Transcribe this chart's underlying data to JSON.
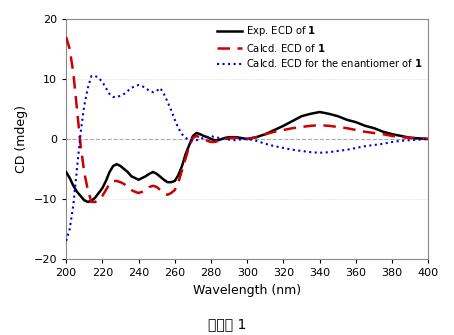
{
  "title": "化合物 1",
  "xlabel": "Wavelength (nm)",
  "ylabel": "CD (mdeg)",
  "xlim": [
    200,
    400
  ],
  "ylim": [
    -20,
    20
  ],
  "xticks": [
    200,
    220,
    240,
    260,
    280,
    300,
    320,
    340,
    360,
    380,
    400
  ],
  "yticks": [
    -20,
    -10,
    0,
    10,
    20
  ],
  "legend": [
    {
      "label": "Exp. ECD of 1",
      "color": "#000000",
      "linestyle": "solid",
      "linewidth": 1.8
    },
    {
      "label": "Calcd. ECD of 1",
      "color": "#cc0000",
      "linestyle": "dashed",
      "linewidth": 1.8
    },
    {
      "label": "Calcd. ECD for the enantiomer of 1",
      "color": "#0000cc",
      "linestyle": "dotted",
      "linewidth": 1.5
    }
  ],
  "exp_x": [
    200,
    202,
    204,
    206,
    208,
    210,
    212,
    214,
    216,
    218,
    220,
    222,
    224,
    226,
    228,
    230,
    232,
    234,
    236,
    238,
    240,
    242,
    244,
    246,
    248,
    250,
    252,
    254,
    256,
    258,
    260,
    262,
    264,
    266,
    268,
    270,
    272,
    274,
    276,
    278,
    280,
    282,
    284,
    286,
    288,
    290,
    292,
    294,
    296,
    298,
    300,
    305,
    310,
    315,
    320,
    325,
    330,
    335,
    340,
    345,
    350,
    355,
    360,
    365,
    370,
    375,
    380,
    385,
    390,
    395,
    400
  ],
  "exp_y": [
    -5.5,
    -6.5,
    -7.8,
    -8.8,
    -9.5,
    -10.2,
    -10.5,
    -10.3,
    -9.8,
    -9.0,
    -8.2,
    -7.0,
    -5.5,
    -4.5,
    -4.2,
    -4.5,
    -5.0,
    -5.5,
    -6.2,
    -6.5,
    -6.8,
    -6.5,
    -6.2,
    -5.8,
    -5.5,
    -5.8,
    -6.3,
    -6.8,
    -7.2,
    -7.2,
    -7.0,
    -6.0,
    -4.5,
    -2.5,
    -1.0,
    0.5,
    1.0,
    0.8,
    0.5,
    0.3,
    0.0,
    -0.2,
    -0.2,
    0.0,
    0.2,
    0.3,
    0.3,
    0.3,
    0.2,
    0.1,
    0.0,
    0.3,
    0.8,
    1.5,
    2.2,
    3.0,
    3.8,
    4.2,
    4.5,
    4.2,
    3.8,
    3.2,
    2.8,
    2.2,
    1.8,
    1.2,
    0.8,
    0.5,
    0.2,
    0.1,
    0.0
  ],
  "calcd_x": [
    200,
    202,
    204,
    206,
    208,
    210,
    212,
    214,
    216,
    218,
    220,
    222,
    224,
    226,
    228,
    230,
    232,
    234,
    236,
    238,
    240,
    242,
    244,
    246,
    248,
    250,
    252,
    254,
    256,
    258,
    260,
    262,
    264,
    266,
    268,
    270,
    272,
    274,
    276,
    278,
    280,
    282,
    284,
    286,
    288,
    290,
    292,
    294,
    296,
    298,
    300,
    305,
    310,
    315,
    320,
    325,
    330,
    335,
    340,
    345,
    350,
    355,
    360,
    365,
    370,
    375,
    380,
    385,
    390,
    395,
    400
  ],
  "calcd_y": [
    17.0,
    15.0,
    11.0,
    5.0,
    -1.0,
    -5.5,
    -8.5,
    -10.5,
    -10.5,
    -10.2,
    -9.5,
    -8.5,
    -7.5,
    -7.0,
    -7.0,
    -7.2,
    -7.5,
    -8.0,
    -8.5,
    -8.8,
    -9.0,
    -8.8,
    -8.5,
    -8.0,
    -7.8,
    -8.0,
    -8.5,
    -9.0,
    -9.3,
    -9.0,
    -8.5,
    -7.2,
    -5.2,
    -3.2,
    -1.2,
    0.2,
    0.5,
    0.3,
    0.0,
    -0.3,
    -0.5,
    -0.5,
    -0.3,
    -0.2,
    0.0,
    0.1,
    0.2,
    0.2,
    0.1,
    0.0,
    0.0,
    0.3,
    0.8,
    1.2,
    1.5,
    1.8,
    2.0,
    2.2,
    2.3,
    2.2,
    2.0,
    1.8,
    1.5,
    1.2,
    1.0,
    0.8,
    0.5,
    0.3,
    0.2,
    0.1,
    0.0
  ],
  "enanti_x": [
    200,
    202,
    204,
    206,
    208,
    210,
    212,
    214,
    216,
    218,
    220,
    222,
    224,
    226,
    228,
    230,
    232,
    234,
    236,
    238,
    240,
    242,
    244,
    246,
    248,
    250,
    252,
    254,
    256,
    258,
    260,
    262,
    264,
    266,
    268,
    270,
    272,
    274,
    276,
    278,
    280,
    282,
    284,
    286,
    288,
    290,
    292,
    294,
    296,
    298,
    300,
    305,
    310,
    315,
    320,
    325,
    330,
    335,
    340,
    345,
    350,
    355,
    360,
    365,
    370,
    375,
    380,
    385,
    390,
    395,
    400
  ],
  "enanti_y": [
    -17.0,
    -15.0,
    -11.0,
    -5.0,
    1.0,
    5.5,
    8.5,
    10.5,
    10.5,
    10.2,
    9.5,
    8.5,
    7.5,
    7.0,
    7.0,
    7.2,
    7.5,
    8.0,
    8.5,
    8.8,
    9.0,
    8.8,
    8.5,
    8.0,
    7.8,
    8.0,
    8.5,
    7.5,
    6.2,
    4.8,
    3.2,
    1.8,
    0.8,
    0.2,
    -0.2,
    -0.3,
    -0.2,
    0.0,
    0.2,
    0.3,
    0.5,
    0.3,
    0.2,
    0.1,
    0.0,
    -0.1,
    -0.2,
    -0.2,
    -0.1,
    0.0,
    0.0,
    -0.3,
    -0.8,
    -1.2,
    -1.5,
    -1.8,
    -2.0,
    -2.2,
    -2.3,
    -2.2,
    -2.0,
    -1.8,
    -1.5,
    -1.2,
    -1.0,
    -0.8,
    -0.5,
    -0.3,
    -0.2,
    -0.1,
    0.0
  ],
  "background_color": "#ffffff",
  "zero_line_color": "#aaaaaa",
  "grid_color": "#cccccc"
}
